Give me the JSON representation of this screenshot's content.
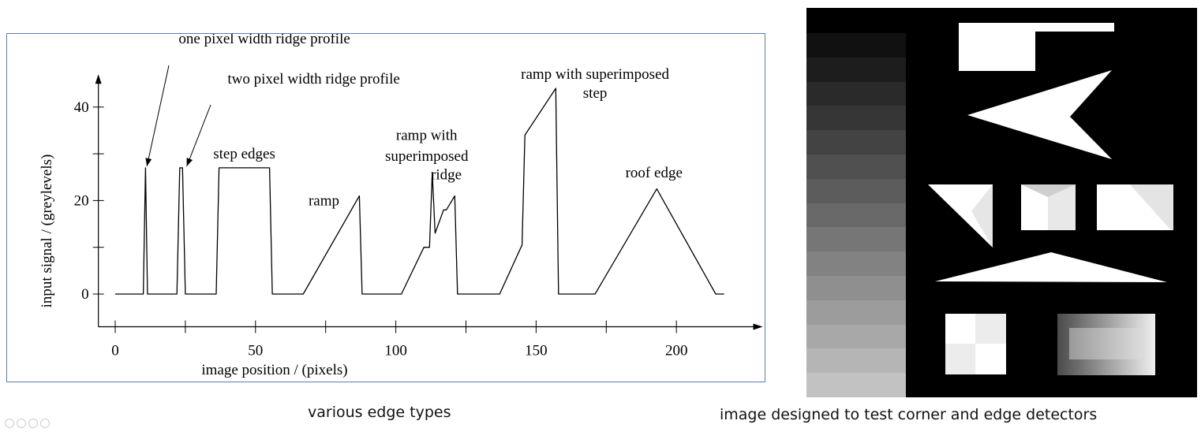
{
  "left_caption": "various edge types",
  "right_caption": "image designed to test corner and edge detectors",
  "chart_data": {
    "type": "line",
    "xlabel": "image position / (pixels)",
    "ylabel": "input signal / (greylevels)",
    "x_ticks": [
      "0",
      "50",
      "100",
      "150",
      "200"
    ],
    "y_ticks": [
      "0",
      "20",
      "40"
    ],
    "xlim": [
      -6,
      224
    ],
    "ylim": [
      -7,
      46
    ],
    "series": [
      {
        "x": [
          0,
          10,
          10.8,
          11.5,
          12,
          22,
          23,
          24,
          25,
          36,
          37,
          55,
          56,
          67,
          87,
          88,
          102,
          110,
          112,
          113,
          114,
          117,
          118,
          121,
          122,
          137,
          145,
          146,
          157,
          158,
          171,
          193,
          214,
          217
        ],
        "y": [
          0,
          0,
          27,
          0,
          0,
          0,
          27,
          27,
          0,
          0,
          27,
          27,
          0,
          0,
          21,
          0,
          0,
          10,
          10,
          26,
          13,
          18,
          18,
          21,
          0,
          0,
          10.5,
          34,
          44,
          0,
          0,
          22.5,
          0,
          0
        ]
      }
    ],
    "annotations": [
      {
        "text": "one pixel width ridge profile",
        "x": 11,
        "y": 27
      },
      {
        "text": "two pixel width ridge profile",
        "x": 23.5,
        "y": 27
      },
      {
        "text": "step edges",
        "x": 46,
        "y": 29
      },
      {
        "text": "ramp",
        "x": 80,
        "y": 19
      },
      {
        "text": "ramp with",
        "x": 111,
        "y": 33
      },
      {
        "text": "superimposed",
        "x": 111,
        "y": 28.5
      },
      {
        "text": "ridge",
        "x": 118,
        "y": 24.5
      },
      {
        "text": "ramp with superimposed",
        "x": 171,
        "y": 46
      },
      {
        "text": "step",
        "x": 171,
        "y": 42
      },
      {
        "text": "roof edge",
        "x": 192,
        "y": 25
      }
    ]
  },
  "test_image": {
    "gray_levels": [
      "#111111",
      "#1d1d1d",
      "#2a2a2a",
      "#363636",
      "#434343",
      "#505050",
      "#5c5c5c",
      "#696969",
      "#767676",
      "#828282",
      "#8f8f8f",
      "#9c9c9c",
      "#a8a8a8",
      "#b5b5b5",
      "#c2c2c2"
    ],
    "shapes": [
      "rectangle-with-bar",
      "arrowhead",
      "triangle",
      "shaded-square",
      "shaded-rectangle",
      "flat-triangle",
      "checker-square",
      "gradient-rectangle"
    ]
  }
}
